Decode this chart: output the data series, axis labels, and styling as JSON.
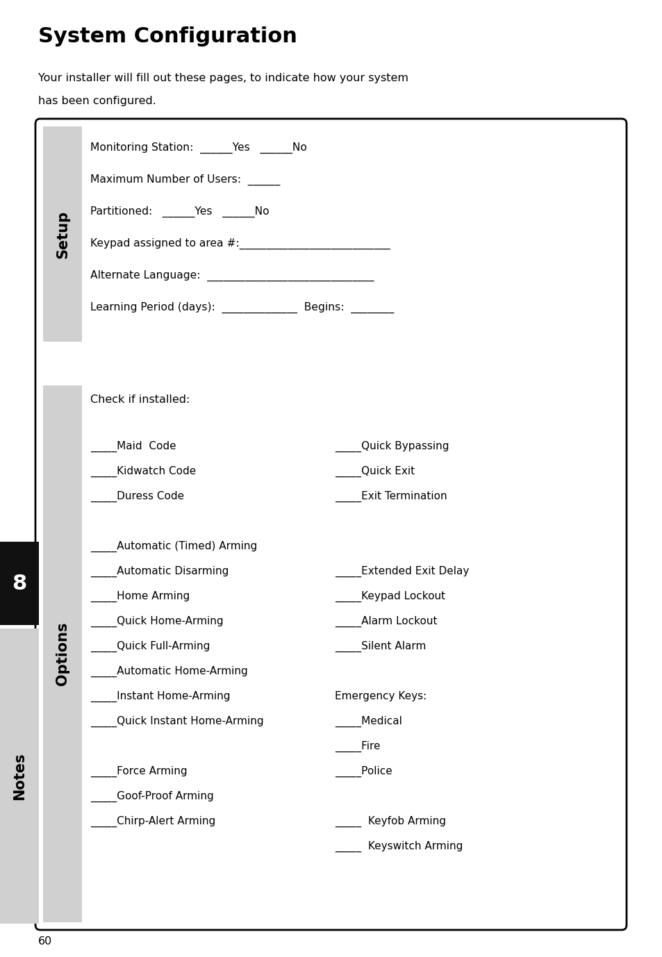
{
  "title": "System Configuration",
  "intro_line1": "Your installer will fill out these pages, to indicate how your system",
  "intro_line2": "has been configured.",
  "page_number": "60",
  "section_number": "8",
  "setup_label": "Setup",
  "options_label": "Options",
  "notes_label": "Notes",
  "setup_lines": [
    "Monitoring Station:  ______Yes   ______No",
    "Maximum Number of Users:  ______",
    "Partitioned:   ______Yes   ______No",
    "Keypad assigned to area #:____________________________",
    "Alternate Language:  _______________________________",
    "Learning Period (days):  ______________  Begins:  ________"
  ],
  "options_header": "Check if installed:",
  "col1_items": [
    "_____Maid  Code",
    "_____Kidwatch Code",
    "_____Duress Code",
    "",
    "_____Automatic (Timed) Arming",
    "_____Automatic Disarming",
    "_____Home Arming",
    "_____Quick Home-Arming",
    "_____Quick Full-Arming",
    "_____Automatic Home-Arming",
    "_____Instant Home-Arming",
    "_____Quick Instant Home-Arming",
    "",
    "_____Force Arming",
    "_____Goof-Proof Arming",
    "_____Chirp-Alert Arming"
  ],
  "col2_items": [
    "_____Quick Bypassing",
    "_____Quick Exit",
    "_____Exit Termination",
    "",
    "",
    "_____Extended Exit Delay",
    "_____Keypad Lockout",
    "_____Alarm Lockout",
    "_____Silent Alarm",
    "",
    "Emergency Keys:",
    "_____Medical",
    "_____Fire",
    "_____Police",
    "",
    "_____  Keyfob Arming",
    "_____  Keyswitch Arming"
  ],
  "background_color": "#ffffff",
  "box_border": "#000000",
  "label_bg": "#d0d0d0",
  "section8_bg": "#111111",
  "section8_color": "#ffffff"
}
